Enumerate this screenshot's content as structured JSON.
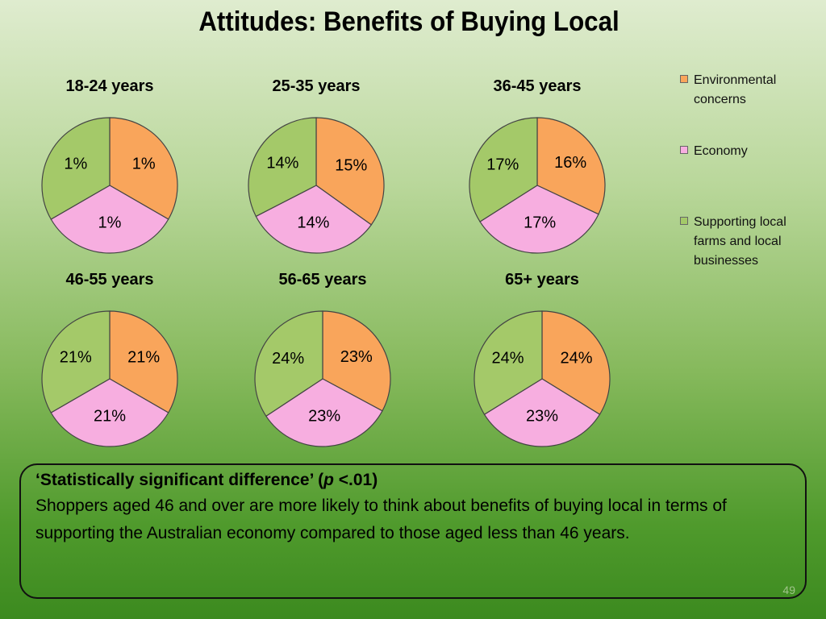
{
  "slide": {
    "title": "Attitudes: Benefits of Buying Local",
    "slide_number": "49"
  },
  "colors": {
    "environmental": "#f9a55b",
    "economy": "#f7aee0",
    "supporting": "#a4c969",
    "outline": "#444444"
  },
  "legend": [
    {
      "label": "Environmental concerns",
      "color": "#f9a55b"
    },
    {
      "label": "Economy",
      "color": "#f7aee0"
    },
    {
      "label": "Supporting local farms and local businesses",
      "color": "#a4c969"
    }
  ],
  "chart_data": [
    {
      "type": "pie",
      "title": "18-24 years",
      "slices": [
        {
          "label": "Environmental concerns",
          "value": 1,
          "text": "1%"
        },
        {
          "label": "Economy",
          "value": 1,
          "text": "1%"
        },
        {
          "label": "Supporting local farms and local businesses",
          "value": 1,
          "text": "1%"
        }
      ]
    },
    {
      "type": "pie",
      "title": "25-35 years",
      "slices": [
        {
          "label": "Environmental concerns",
          "value": 15,
          "text": "15%"
        },
        {
          "label": "Economy",
          "value": 14,
          "text": "14%"
        },
        {
          "label": "Supporting local farms and local businesses",
          "value": 14,
          "text": "14%"
        }
      ]
    },
    {
      "type": "pie",
      "title": "36-45 years",
      "slices": [
        {
          "label": "Environmental concerns",
          "value": 16,
          "text": "16%"
        },
        {
          "label": "Economy",
          "value": 17,
          "text": "17%"
        },
        {
          "label": "Supporting local farms and local businesses",
          "value": 17,
          "text": "17%"
        }
      ]
    },
    {
      "type": "pie",
      "title": "46-55 years",
      "slices": [
        {
          "label": "Environmental concerns",
          "value": 21,
          "text": "21%"
        },
        {
          "label": "Economy",
          "value": 21,
          "text": "21%"
        },
        {
          "label": "Supporting local farms and local businesses",
          "value": 21,
          "text": "21%"
        }
      ]
    },
    {
      "type": "pie",
      "title": "56-65 years",
      "slices": [
        {
          "label": "Environmental concerns",
          "value": 23,
          "text": "23%"
        },
        {
          "label": "Economy",
          "value": 23,
          "text": "23%"
        },
        {
          "label": "Supporting local farms and local businesses",
          "value": 24,
          "text": "24%"
        }
      ]
    },
    {
      "type": "pie",
      "title": "65+ years",
      "slices": [
        {
          "label": "Environmental concerns",
          "value": 24,
          "text": "24%"
        },
        {
          "label": "Economy",
          "value": 23,
          "text": "23%"
        },
        {
          "label": "Supporting local farms and local businesses",
          "value": 24,
          "text": "24%"
        }
      ]
    }
  ],
  "note": {
    "heading_before": "‘Statistically significant difference’ (",
    "heading_p": "p",
    "heading_after": " <.01)",
    "text": "Shoppers aged 46 and over are more likely to think about benefits of buying local in terms of supporting the Australian economy compared to those aged less than 46 years."
  }
}
